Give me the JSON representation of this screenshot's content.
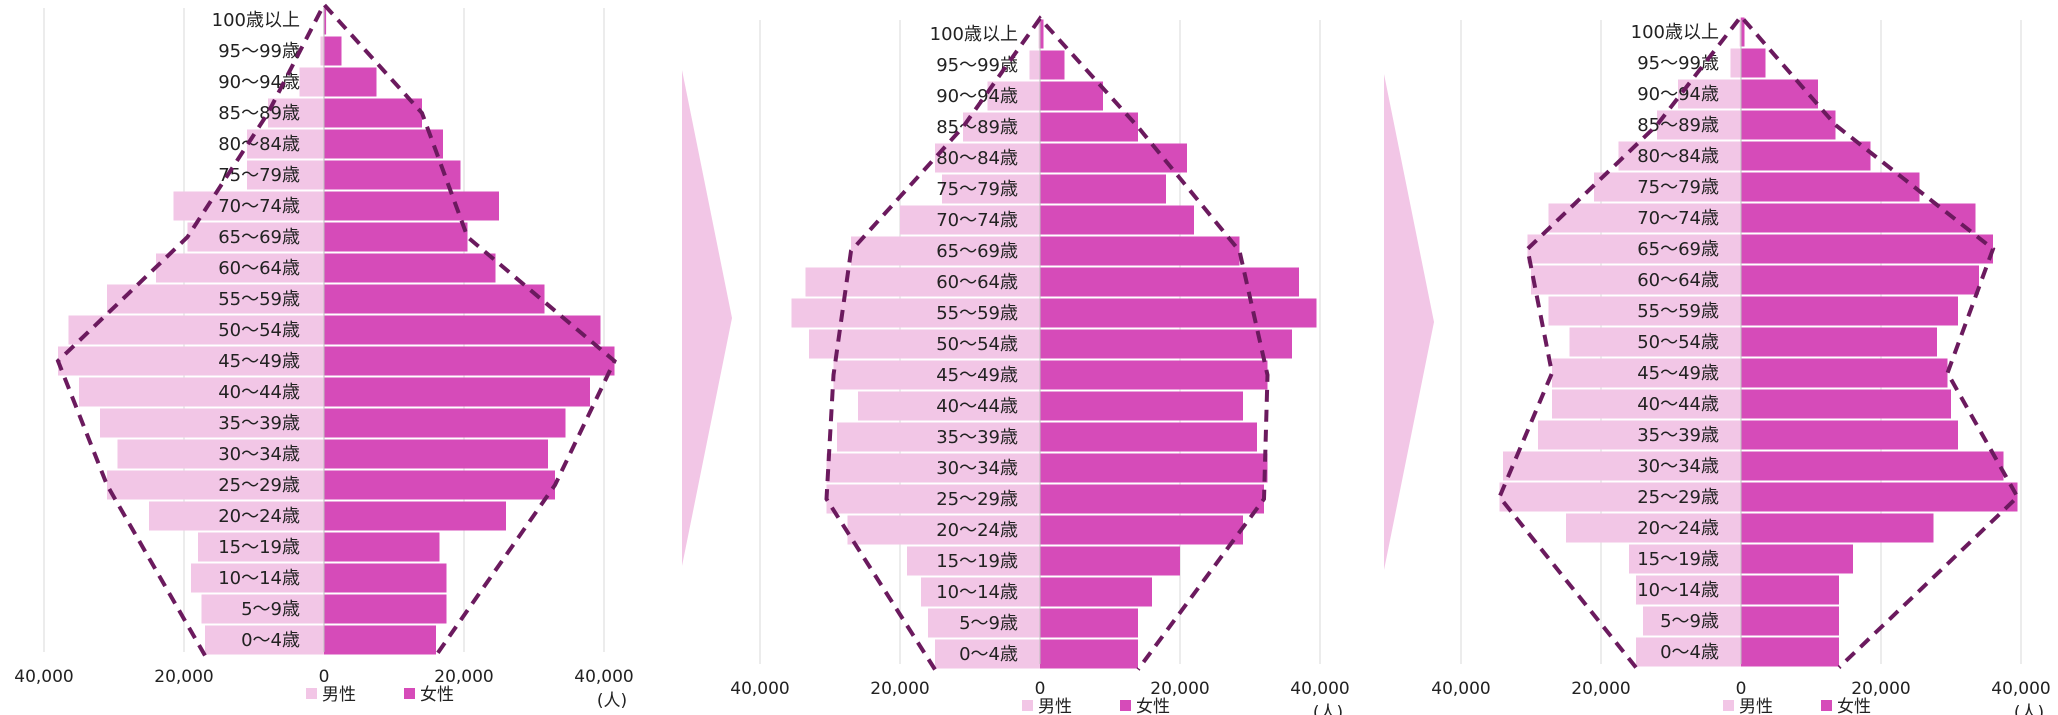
{
  "unit_label": "(人)",
  "legend": {
    "male": "男性",
    "female": "女性"
  },
  "colors": {
    "male": "#f2c6e6",
    "female": "#d64bb9",
    "outline": "#6b1a5e",
    "grid": "#d9d9d9",
    "arrow": "#f2c6e6"
  },
  "age_groups": [
    "0～4歳",
    "5～9歳",
    "10～14歳",
    "15～19歳",
    "20～24歳",
    "25～29歳",
    "30～34歳",
    "35～39歳",
    "40～44歳",
    "45～49歳",
    "50～54歳",
    "55～59歳",
    "60～64歳",
    "65～69歳",
    "70～74歳",
    "75～79歳",
    "80～84歳",
    "85～89歳",
    "90～94歳",
    "95～99歳",
    "100歳以上"
  ],
  "chart_data": [
    {
      "type": "bar",
      "orientation": "horizontal",
      "categories": [
        "0～4歳",
        "5～9歳",
        "10～14歳",
        "15～19歳",
        "20～24歳",
        "25～29歳",
        "30～34歳",
        "35～39歳",
        "40～44歳",
        "45～49歳",
        "50～54歳",
        "55～59歳",
        "60～64歳",
        "65～69歳",
        "70～74歳",
        "75～79歳",
        "80～84歳",
        "85～89歳",
        "90～94歳",
        "95～99歳",
        "100歳以上"
      ],
      "series": [
        {
          "name": "男性",
          "values": [
            17000,
            17500,
            19000,
            18000,
            25000,
            31000,
            29500,
            32000,
            35000,
            38000,
            36500,
            31000,
            24000,
            19500,
            21500,
            11000,
            11000,
            8000,
            3500,
            500,
            100
          ]
        },
        {
          "name": "女性",
          "values": [
            16000,
            17500,
            17500,
            16500,
            26000,
            33000,
            32000,
            34500,
            38000,
            41500,
            39500,
            31500,
            24500,
            20500,
            25000,
            19500,
            17000,
            14000,
            7500,
            2500,
            300
          ]
        }
      ],
      "xticks": [
        "40,000",
        "20,000",
        "0",
        "20,000",
        "40,000"
      ],
      "xlim": [
        -40000,
        40000
      ],
      "xlabel": "(人)",
      "grid": true,
      "legend_position": "bottom"
    },
    {
      "type": "bar",
      "orientation": "horizontal",
      "categories": [
        "0～4歳",
        "5～9歳",
        "10～14歳",
        "15～19歳",
        "20～24歳",
        "25～29歳",
        "30～34歳",
        "35～39歳",
        "40～44歳",
        "45～49歳",
        "50～54歳",
        "55～59歳",
        "60～64歳",
        "65～69歳",
        "70～74歳",
        "75～79歳",
        "80～84歳",
        "85～89歳",
        "90～94歳",
        "95～99歳",
        "100歳以上"
      ],
      "series": [
        {
          "name": "男性",
          "values": [
            15000,
            16000,
            17000,
            19000,
            27500,
            30500,
            30500,
            29000,
            26000,
            29500,
            33000,
            35500,
            33500,
            27000,
            20000,
            14000,
            15000,
            11000,
            7500,
            1500,
            200
          ]
        },
        {
          "name": "女性",
          "values": [
            14000,
            14000,
            16000,
            20000,
            29000,
            32000,
            32500,
            31000,
            29000,
            32500,
            36000,
            39500,
            37000,
            28500,
            22000,
            18000,
            21000,
            14000,
            9000,
            3500,
            500
          ]
        }
      ],
      "xticks": [
        "40,000",
        "20,000",
        "0",
        "20,000",
        "40,000"
      ],
      "xlim": [
        -40000,
        40000
      ],
      "xlabel": "(人)",
      "grid": true,
      "legend_position": "bottom"
    },
    {
      "type": "bar",
      "orientation": "horizontal",
      "categories": [
        "0～4歳",
        "5～9歳",
        "10～14歳",
        "15～19歳",
        "20～24歳",
        "25～29歳",
        "30～34歳",
        "35～39歳",
        "40～44歳",
        "45～49歳",
        "50～54歳",
        "55～59歳",
        "60～64歳",
        "65～69歳",
        "70～74歳",
        "75～79歳",
        "80～84歳",
        "85～89歳",
        "90～94歳",
        "95～99歳",
        "100歳以上"
      ],
      "series": [
        {
          "name": "男性",
          "values": [
            15000,
            14000,
            15000,
            16000,
            25000,
            34500,
            34000,
            29000,
            27000,
            27000,
            24500,
            27500,
            30000,
            30500,
            27500,
            21000,
            17500,
            12000,
            9000,
            1500,
            200
          ]
        },
        {
          "name": "女性",
          "values": [
            14000,
            14000,
            14000,
            16000,
            27500,
            39500,
            37500,
            31000,
            30000,
            29500,
            28000,
            31000,
            34000,
            36000,
            33500,
            25500,
            18500,
            13500,
            11000,
            3500,
            500
          ]
        }
      ],
      "xticks": [
        "40,000",
        "20,000",
        "0",
        "20,000",
        "40,000"
      ],
      "xlim": [
        -40000,
        40000
      ],
      "xlabel": "(人)",
      "grid": true,
      "legend_position": "bottom"
    }
  ]
}
